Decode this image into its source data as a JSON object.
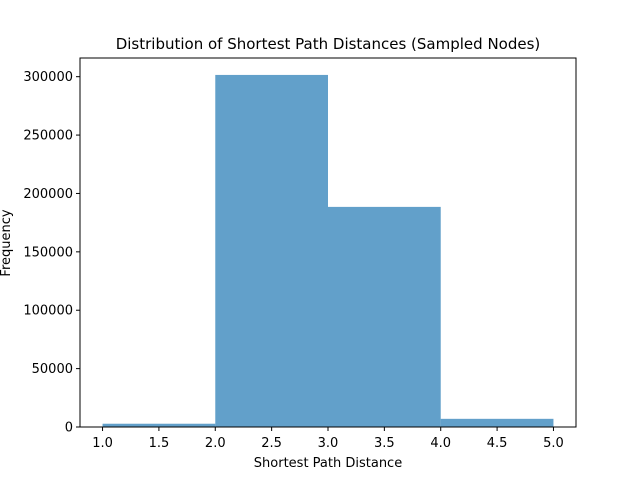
{
  "chart_data": {
    "type": "bar",
    "title": "Distribution of Shortest Path Distances (Sampled Nodes)",
    "xlabel": "Shortest Path Distance",
    "ylabel": "Frequency",
    "bins": [
      {
        "x0": 1.0,
        "x1": 2.0,
        "value": 2800
      },
      {
        "x0": 2.0,
        "x1": 3.0,
        "value": 301500
      },
      {
        "x0": 3.0,
        "x1": 4.0,
        "value": 188500
      },
      {
        "x0": 4.0,
        "x1": 5.0,
        "value": 7000
      }
    ],
    "xlim": [
      0.8,
      5.2
    ],
    "ylim": [
      0,
      316000
    ],
    "xticks": [
      1.0,
      1.5,
      2.0,
      2.5,
      3.0,
      3.5,
      4.0,
      4.5,
      5.0
    ],
    "xtick_labels": [
      "1.0",
      "1.5",
      "2.0",
      "2.5",
      "3.0",
      "3.5",
      "4.0",
      "4.5",
      "5.0"
    ],
    "yticks": [
      0,
      50000,
      100000,
      150000,
      200000,
      250000,
      300000
    ],
    "ytick_labels": [
      "0",
      "50000",
      "100000",
      "150000",
      "200000",
      "250000",
      "300000"
    ],
    "bar_color": "#1f77b4",
    "bar_opacity": 0.7,
    "grid": false,
    "legend": "none"
  }
}
